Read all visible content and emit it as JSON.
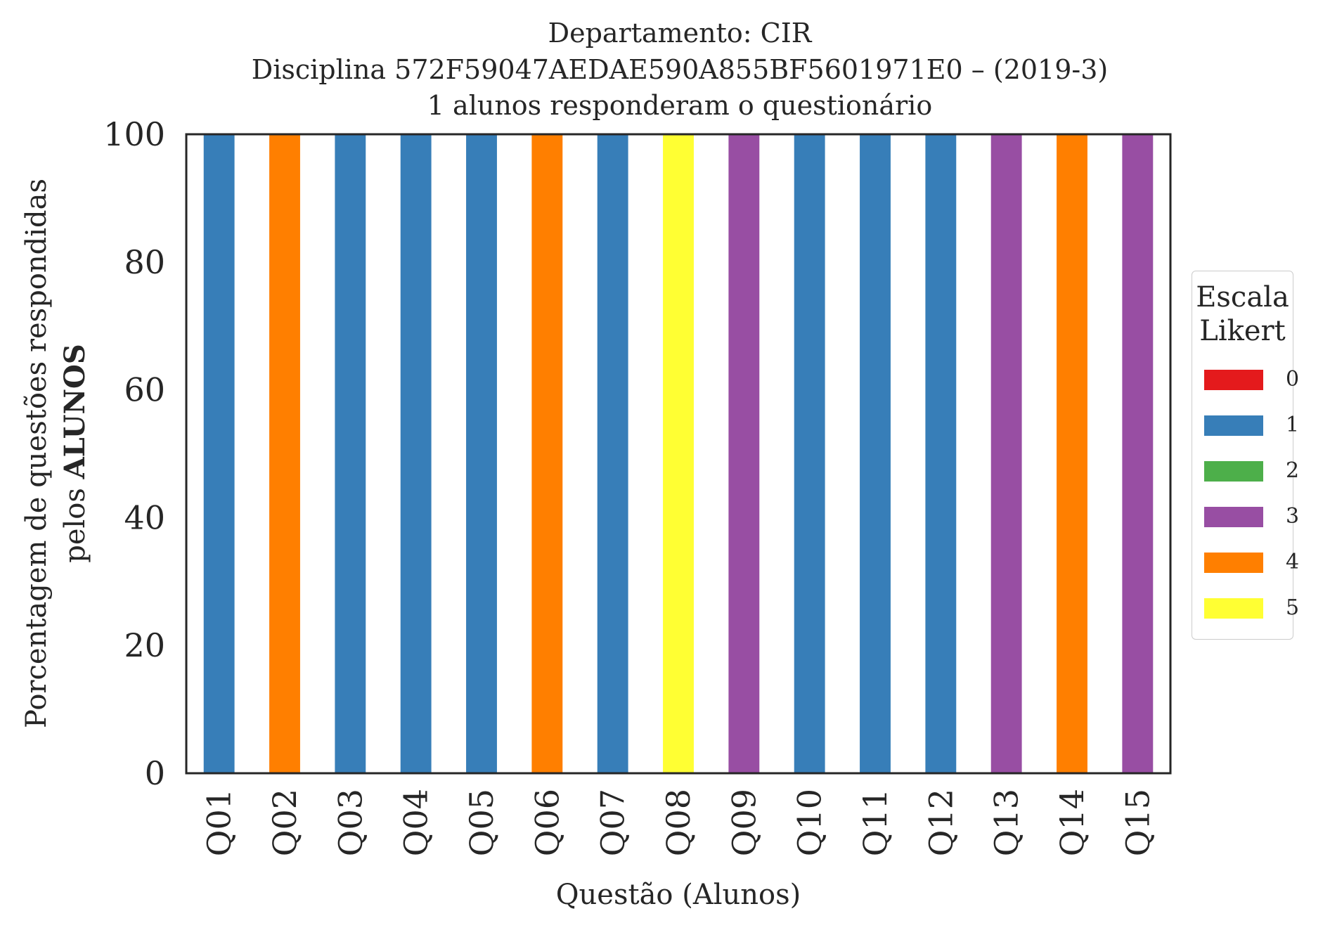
{
  "chart_data": {
    "type": "bar",
    "title_lines": [
      "Departamento: CIR",
      "Disciplina 572F59047AEDAE590A855BF5601971E0 – (2019-3)",
      "1 alunos responderam o questionário"
    ],
    "xlabel": "Questão (Alunos)",
    "ylabel_line1": "Porcentagem de questões respondidas",
    "ylabel_line2_prefix": "pelos ",
    "ylabel_line2_bold": "ALUNOS",
    "ylim": [
      0,
      100
    ],
    "yticks": [
      0,
      20,
      40,
      60,
      80,
      100
    ],
    "categories": [
      "Q01",
      "Q02",
      "Q03",
      "Q04",
      "Q05",
      "Q06",
      "Q07",
      "Q08",
      "Q09",
      "Q10",
      "Q11",
      "Q12",
      "Q13",
      "Q14",
      "Q15"
    ],
    "responses": [
      1,
      4,
      1,
      1,
      1,
      4,
      1,
      5,
      3,
      1,
      1,
      1,
      3,
      4,
      3
    ],
    "values": [
      100,
      100,
      100,
      100,
      100,
      100,
      100,
      100,
      100,
      100,
      100,
      100,
      100,
      100,
      100
    ],
    "grid": false,
    "legend": {
      "title_line1": "Escala",
      "title_line2": "Likert",
      "placement": "center-right-outside",
      "entries": [
        {
          "label": "0",
          "color": "#e41a1c"
        },
        {
          "label": "1",
          "color": "#377eb8"
        },
        {
          "label": "2",
          "color": "#4daf4a"
        },
        {
          "label": "3",
          "color": "#984ea3"
        },
        {
          "label": "4",
          "color": "#ff7f00"
        },
        {
          "label": "5",
          "color": "#ffff33"
        }
      ]
    }
  }
}
